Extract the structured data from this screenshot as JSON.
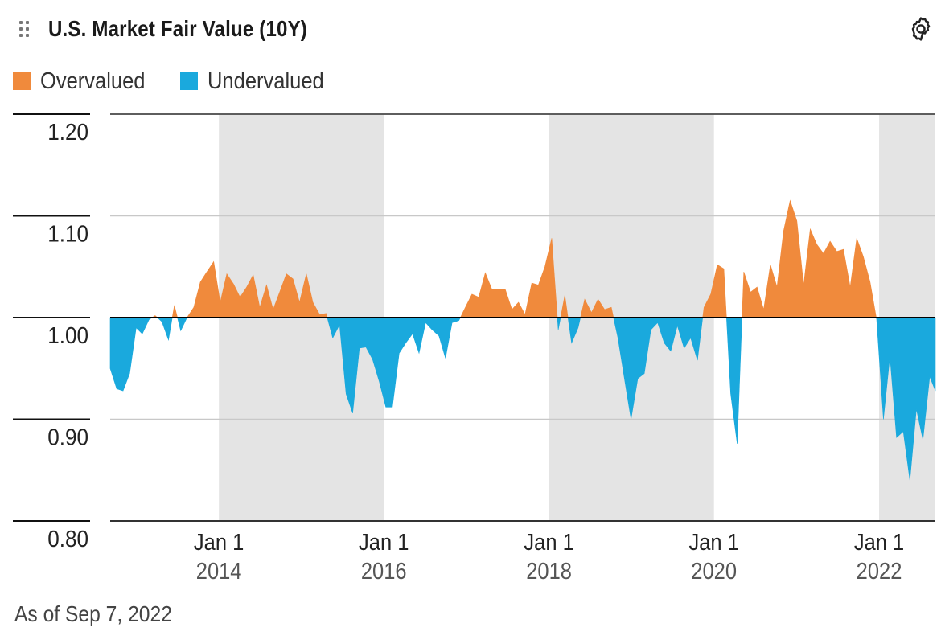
{
  "header": {
    "title": "U.S. Market Fair Value (10Y)",
    "drag_icon": "drag-handle-icon",
    "settings_icon": "gear-icon"
  },
  "legend": [
    {
      "label": "Overvalued",
      "color": "#f08a3c"
    },
    {
      "label": "Undervalued",
      "color": "#1aa9dd"
    }
  ],
  "footer": {
    "as_of": "As of Sep 7, 2022"
  },
  "chart_data": {
    "type": "area",
    "title": "U.S. Market Fair Value (10Y)",
    "xlabel": "",
    "ylabel": "",
    "baseline": 1.0,
    "ylim": [
      0.8,
      1.2
    ],
    "xlim": [
      "2012-09-07",
      "2022-09-07"
    ],
    "yticks": [
      {
        "value": 1.2,
        "label": "1.20"
      },
      {
        "value": 1.1,
        "label": "1.10"
      },
      {
        "value": 1.0,
        "label": "1.00"
      },
      {
        "value": 0.9,
        "label": "0.90"
      },
      {
        "value": 0.8,
        "label": "0.80"
      }
    ],
    "xticks": [
      {
        "date": "2014-01-01",
        "line1": "Jan 1",
        "line2": "2014"
      },
      {
        "date": "2016-01-01",
        "line1": "Jan 1",
        "line2": "2016"
      },
      {
        "date": "2018-01-01",
        "line1": "Jan 1",
        "line2": "2018"
      },
      {
        "date": "2020-01-01",
        "line1": "Jan 1",
        "line2": "2020"
      },
      {
        "date": "2022-01-01",
        "line1": "Jan 1",
        "line2": "2022"
      }
    ],
    "shaded_periods": [
      [
        "2014-01-01",
        "2016-01-01"
      ],
      [
        "2018-01-01",
        "2020-01-01"
      ],
      [
        "2022-01-01",
        "2022-09-07"
      ]
    ],
    "grid": true,
    "legend_position": "top-left",
    "series": [
      {
        "name": "Overvalued",
        "color": "#f08a3c"
      },
      {
        "name": "Undervalued",
        "color": "#1aa9dd"
      }
    ],
    "points": [
      [
        "2012-09-07",
        0.95
      ],
      [
        "2012-10-06",
        0.93
      ],
      [
        "2012-11-03",
        0.928
      ],
      [
        "2012-12-02",
        0.945
      ],
      [
        "2012-12-31",
        0.99
      ],
      [
        "2013-01-27",
        0.984
      ],
      [
        "2013-02-26",
        0.998
      ],
      [
        "2013-03-25",
        1.002
      ],
      [
        "2013-04-24",
        0.996
      ],
      [
        "2013-05-23",
        0.978
      ],
      [
        "2013-06-18",
        1.012
      ],
      [
        "2013-07-16",
        0.987
      ],
      [
        "2013-08-13",
        1.0
      ],
      [
        "2013-09-12",
        1.01
      ],
      [
        "2013-10-11",
        1.035
      ],
      [
        "2013-11-09",
        1.045
      ],
      [
        "2013-12-09",
        1.055
      ],
      [
        "2014-01-07",
        1.015
      ],
      [
        "2014-02-05",
        1.043
      ],
      [
        "2014-03-07",
        1.033
      ],
      [
        "2014-04-05",
        1.02
      ],
      [
        "2014-05-04",
        1.03
      ],
      [
        "2014-06-02",
        1.042
      ],
      [
        "2014-07-01",
        1.01
      ],
      [
        "2014-07-31",
        1.032
      ],
      [
        "2014-08-29",
        1.008
      ],
      [
        "2014-09-27",
        1.025
      ],
      [
        "2014-10-27",
        1.043
      ],
      [
        "2014-11-25",
        1.038
      ],
      [
        "2014-12-24",
        1.015
      ],
      [
        "2015-01-23",
        1.043
      ],
      [
        "2015-02-21",
        1.015
      ],
      [
        "2015-03-23",
        1.003
      ],
      [
        "2015-04-21",
        1.004
      ],
      [
        "2015-05-20",
        0.98
      ],
      [
        "2015-06-19",
        0.993
      ],
      [
        "2015-07-18",
        0.925
      ],
      [
        "2015-08-16",
        0.906
      ],
      [
        "2015-09-15",
        0.97
      ],
      [
        "2015-10-14",
        0.971
      ],
      [
        "2015-11-12",
        0.959
      ],
      [
        "2015-12-12",
        0.937
      ],
      [
        "2016-01-10",
        0.912
      ],
      [
        "2016-02-08",
        0.912
      ],
      [
        "2016-03-09",
        0.965
      ],
      [
        "2016-04-07",
        0.975
      ],
      [
        "2016-05-07",
        0.984
      ],
      [
        "2016-06-05",
        0.965
      ],
      [
        "2016-07-04",
        0.995
      ],
      [
        "2016-08-02",
        0.988
      ],
      [
        "2016-09-01",
        0.982
      ],
      [
        "2016-09-30",
        0.96
      ],
      [
        "2016-10-29",
        0.995
      ],
      [
        "2016-11-28",
        0.997
      ],
      [
        "2016-12-27",
        1.01
      ],
      [
        "2017-01-25",
        1.023
      ],
      [
        "2017-02-24",
        1.02
      ],
      [
        "2017-03-25",
        1.044
      ],
      [
        "2017-04-23",
        1.028
      ],
      [
        "2017-05-23",
        1.028
      ],
      [
        "2017-06-21",
        1.028
      ],
      [
        "2017-07-21",
        1.008
      ],
      [
        "2017-08-19",
        1.015
      ],
      [
        "2017-09-17",
        1.003
      ],
      [
        "2017-10-17",
        1.034
      ],
      [
        "2017-11-15",
        1.032
      ],
      [
        "2017-12-14",
        1.05
      ],
      [
        "2018-01-13",
        1.078
      ],
      [
        "2018-02-11",
        0.988
      ],
      [
        "2018-03-12",
        1.022
      ],
      [
        "2018-04-11",
        0.975
      ],
      [
        "2018-05-10",
        0.99
      ],
      [
        "2018-06-08",
        1.018
      ],
      [
        "2018-07-08",
        1.005
      ],
      [
        "2018-08-06",
        1.018
      ],
      [
        "2018-09-04",
        1.008
      ],
      [
        "2018-10-04",
        1.01
      ],
      [
        "2018-11-02",
        0.98
      ],
      [
        "2018-12-01",
        0.94
      ],
      [
        "2018-12-30",
        0.9
      ],
      [
        "2019-01-29",
        0.94
      ],
      [
        "2019-02-27",
        0.945
      ],
      [
        "2019-03-28",
        0.988
      ],
      [
        "2019-04-27",
        0.995
      ],
      [
        "2019-05-26",
        0.975
      ],
      [
        "2019-06-24",
        0.967
      ],
      [
        "2019-07-23",
        0.992
      ],
      [
        "2019-08-22",
        0.97
      ],
      [
        "2019-09-20",
        0.98
      ],
      [
        "2019-10-20",
        0.958
      ],
      [
        "2019-11-18",
        1.01
      ],
      [
        "2019-12-18",
        1.023
      ],
      [
        "2020-01-16",
        1.052
      ],
      [
        "2020-02-14",
        1.048
      ],
      [
        "2020-03-15",
        0.925
      ],
      [
        "2020-04-13",
        0.876
      ],
      [
        "2020-05-12",
        1.045
      ],
      [
        "2020-06-11",
        1.025
      ],
      [
        "2020-07-10",
        1.03
      ],
      [
        "2020-08-08",
        1.008
      ],
      [
        "2020-09-07",
        1.052
      ],
      [
        "2020-10-06",
        1.03
      ],
      [
        "2020-11-04",
        1.085
      ],
      [
        "2020-12-03",
        1.115
      ],
      [
        "2021-01-02",
        1.095
      ],
      [
        "2021-02-01",
        1.032
      ],
      [
        "2021-03-02",
        1.087
      ],
      [
        "2021-03-31",
        1.072
      ],
      [
        "2021-04-30",
        1.063
      ],
      [
        "2021-05-29",
        1.075
      ],
      [
        "2021-06-28",
        1.065
      ],
      [
        "2021-07-27",
        1.067
      ],
      [
        "2021-08-26",
        1.03
      ],
      [
        "2021-09-24",
        1.078
      ],
      [
        "2021-10-23",
        1.06
      ],
      [
        "2021-11-22",
        1.035
      ],
      [
        "2021-12-21",
        0.998
      ],
      [
        "2022-01-20",
        0.9
      ],
      [
        "2022-02-18",
        0.962
      ],
      [
        "2022-03-19",
        0.882
      ],
      [
        "2022-04-18",
        0.888
      ],
      [
        "2022-05-17",
        0.84
      ],
      [
        "2022-06-15",
        0.91
      ],
      [
        "2022-07-14",
        0.88
      ],
      [
        "2022-08-13",
        0.942
      ],
      [
        "2022-09-07",
        0.928
      ]
    ]
  }
}
